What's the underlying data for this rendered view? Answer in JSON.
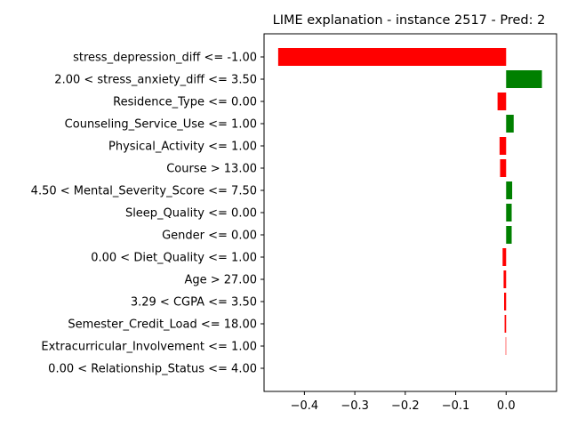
{
  "chart_data": {
    "type": "bar",
    "orientation": "horizontal",
    "title": "LIME explanation - instance 2517 - Pred: 2",
    "xlabel": "",
    "ylabel": "",
    "xlim": [
      -0.48,
      0.1
    ],
    "xticks": [
      -0.4,
      -0.3,
      -0.2,
      -0.1,
      0.0
    ],
    "xtick_labels": [
      "−0.4",
      "−0.3",
      "−0.2",
      "−0.1",
      "0.0"
    ],
    "grid": false,
    "positive_color": "#008000",
    "negative_color": "#ff0000",
    "categories": [
      "stress_depression_diff <= -1.00",
      "2.00 < stress_anxiety_diff <= 3.50",
      "Residence_Type <= 0.00",
      "Counseling_Service_Use <= 1.00",
      "Physical_Activity <= 1.00",
      "Course > 13.00",
      "4.50 < Mental_Severity_Score <= 7.50",
      "Sleep_Quality <= 0.00",
      "Gender <= 0.00",
      "0.00 < Diet_Quality <= 1.00",
      "Age > 27.00",
      "3.29 < CGPA <= 3.50",
      "Semester_Credit_Load <= 18.00",
      "Extracurricular_Involvement <= 1.00",
      "0.00 < Relationship_Status <= 4.00"
    ],
    "values": [
      -0.452,
      0.071,
      -0.017,
      0.015,
      -0.013,
      -0.012,
      0.012,
      0.011,
      0.011,
      -0.007,
      -0.005,
      -0.004,
      -0.003,
      -0.001,
      0.0
    ]
  }
}
